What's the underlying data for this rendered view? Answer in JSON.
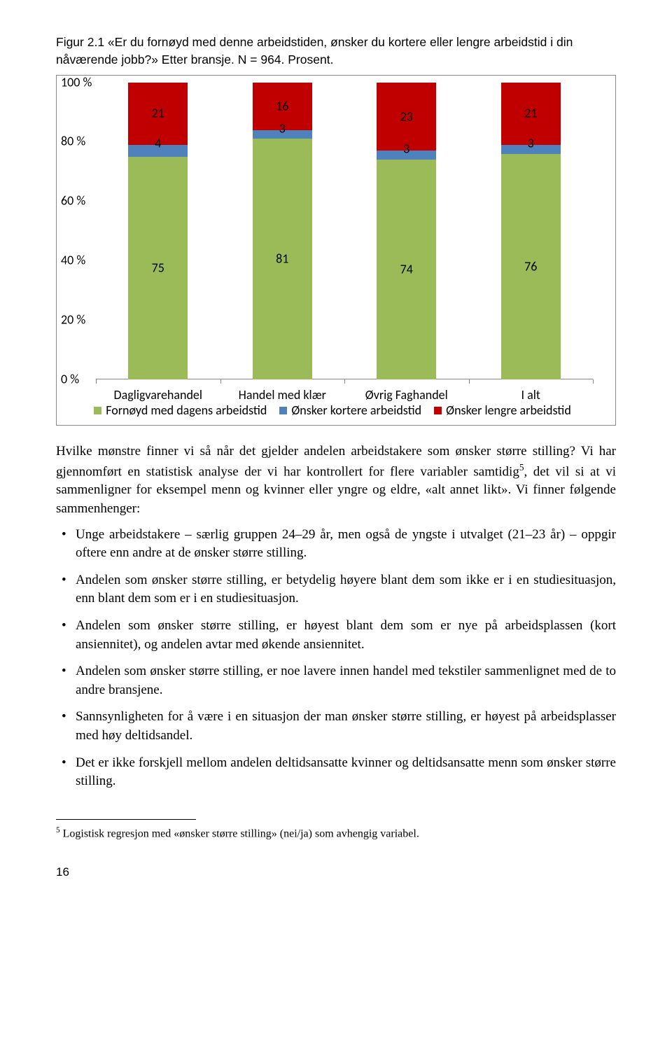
{
  "figure": {
    "caption": "Figur 2.1 «Er du fornøyd med denne arbeidstiden, ønsker du kortere eller lengre arbeidstid i din nåværende jobb?» Etter bransje. N = 964. Prosent.",
    "chart": {
      "type": "stacked-bar-100",
      "y": {
        "min": 0,
        "max": 100,
        "step": 20,
        "suffix": " %"
      },
      "categories": [
        "Dagligvarehandel",
        "Handel med klær",
        "Øvrig Faghandel",
        "I alt"
      ],
      "series": [
        {
          "name": "Ønsker lengre arbeidstid",
          "color": "#c00000",
          "values": [
            21,
            16,
            23,
            21
          ]
        },
        {
          "name": "Ønsker kortere arbeidstid",
          "color": "#4f81bd",
          "values": [
            4,
            3,
            3,
            3
          ]
        },
        {
          "name": "Fornøyd med dagens arbeidstid",
          "color": "#9bbb59",
          "values": [
            75,
            81,
            74,
            76
          ]
        }
      ],
      "legend_order": [
        2,
        1,
        0
      ],
      "background_color": "#ffffff",
      "axis_color": "#888888",
      "label_fontsize": 18
    }
  },
  "analysis": {
    "intro": "Hvilke mønstre finner vi så når det gjelder andelen arbeidstakere som ønsker større stilling? Vi har gjennomført en statistisk analyse der vi har kontrollert for flere variabler samtidig",
    "fn_mark": "5",
    "intro_tail": ", det vil si at vi sammenligner for eksempel menn og kvinner eller yngre og eldre, «alt annet likt». Vi finner følgende sammenhenger:",
    "bullets": [
      "Unge arbeidstakere – særlig gruppen 24–29 år, men også de yngste i utvalget (21–23 år) – oppgir oftere enn andre at de ønsker større stilling.",
      "Andelen som ønsker større stilling, er betydelig høyere blant dem som ikke er i en studiesituasjon, enn blant dem som er i en studiesituasjon.",
      "Andelen som ønsker større stilling, er høyest blant dem som er nye på arbeidsplassen (kort ansiennitet), og andelen avtar med økende ansiennitet.",
      "Andelen som ønsker større stilling, er noe lavere innen handel med tekstiler sammenlignet med de to andre bransjene.",
      "Sannsynligheten for å være i en situasjon der man ønsker større stilling, er høyest på arbeidsplasser med høy deltidsandel.",
      "Det er ikke forskjell mellom andelen deltidsansatte kvinner og deltidsansatte menn som ønsker større stilling."
    ]
  },
  "footnote": {
    "number": "5",
    "text": " Logistisk regresjon med «ønsker større stilling» (nei/ja) som avhengig variabel."
  },
  "page_number": "16"
}
